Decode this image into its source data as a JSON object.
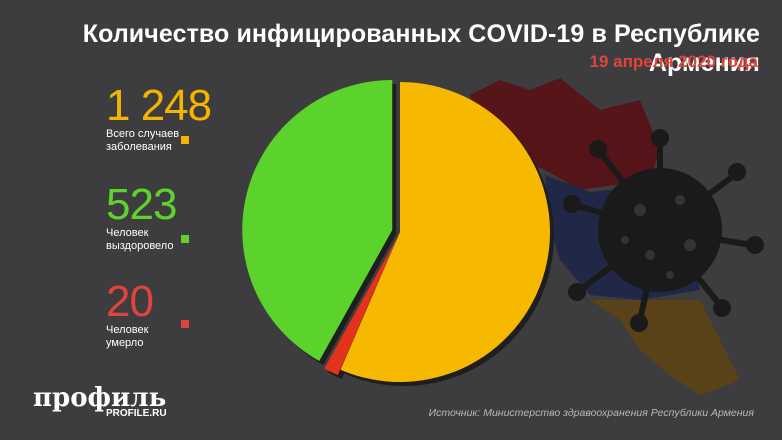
{
  "title": "Количество инфицированных COVID-19 в Республике Армения",
  "subtitle": "19 апреля 2020 года",
  "stats": [
    {
      "value": "1 248",
      "label_line1": "Всего случаев",
      "label_line2": "заболевания",
      "color": "#f5b400"
    },
    {
      "value": "523",
      "label_line1": "Человек",
      "label_line2": "выздоровело",
      "color": "#5ed32c"
    },
    {
      "value": "20",
      "label_line1": "Человек",
      "label_line2": "умерло",
      "color": "#e0443a"
    }
  ],
  "chart_data": {
    "type": "pie",
    "slices": [
      {
        "label": "Всего случаев заболевания",
        "value": 705,
        "color": "#f7b900"
      },
      {
        "label": "Человек умерло",
        "value": 20,
        "color": "#e5331b"
      },
      {
        "label": "Человек выздоровело",
        "value": 523,
        "color": "#5cd22d"
      }
    ],
    "total": 1248
  },
  "logo": {
    "name": "профиль",
    "site": "PROFILE.RU"
  },
  "source": "Источник: Министерство здравоохранения Республики Армения"
}
